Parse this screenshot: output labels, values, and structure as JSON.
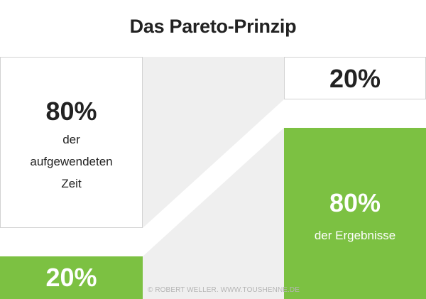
{
  "title": "Das Pareto-Prinzip",
  "colors": {
    "green": "#7cc142",
    "band": "#efefef",
    "border": "#d2d2d2",
    "text": "#222222"
  },
  "left": {
    "top_percent": "80%",
    "top_desc_lines": [
      "der",
      "aufgewendeten",
      "Zeit"
    ],
    "bottom_percent": "20%"
  },
  "right": {
    "top_percent": "20%",
    "bottom_percent": "80%",
    "bottom_desc": "der Ergebnisse"
  },
  "credit": "© ROBERT WELLER. WWW.TOUSHENNE.DE"
}
